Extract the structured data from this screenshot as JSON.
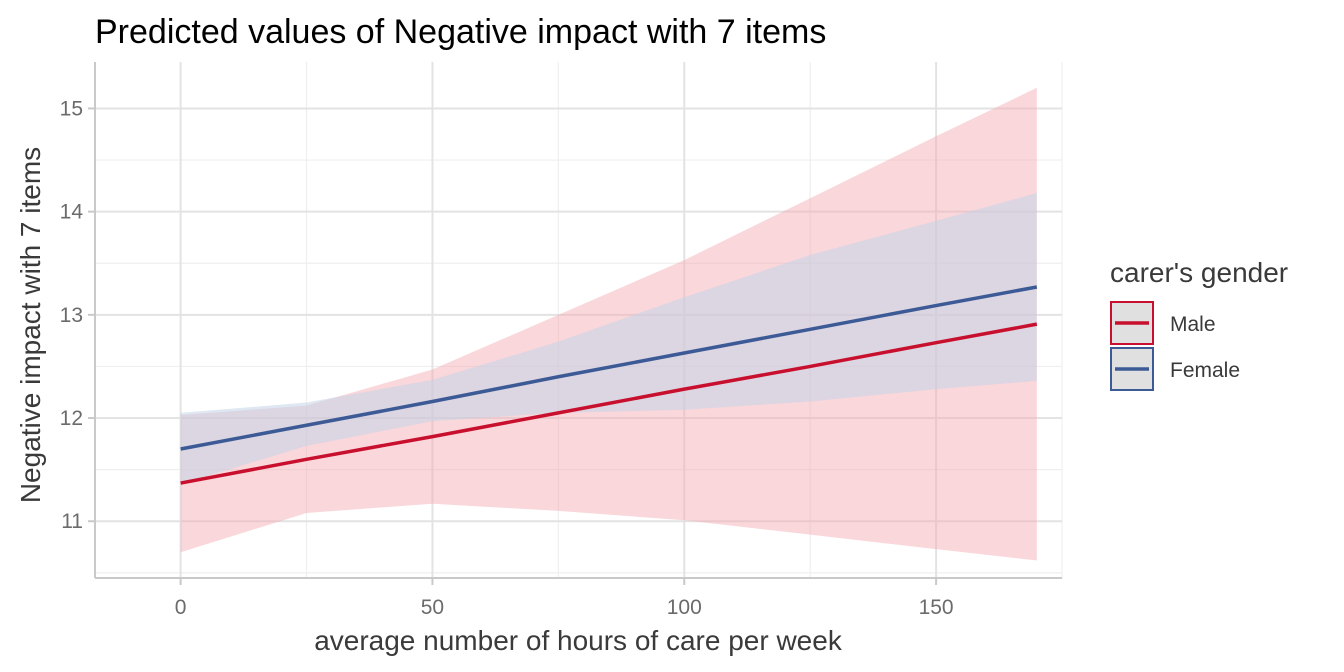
{
  "chart_data": {
    "type": "line",
    "title": "Predicted values of Negative impact with 7 items",
    "xlabel": "average number of hours of care per week",
    "ylabel": "Negative impact with 7 items",
    "xlim": [
      -17,
      175
    ],
    "ylim": [
      10.45,
      15.45
    ],
    "xticks": [
      0,
      50,
      100,
      150
    ],
    "yticks": [
      11,
      12,
      13,
      14,
      15
    ],
    "grid": true,
    "legend": {
      "title": "carer's gender",
      "position": "right"
    },
    "x": [
      0,
      25,
      50,
      75,
      100,
      125,
      150,
      170
    ],
    "series": [
      {
        "name": "Male",
        "color": "#c8102e",
        "ribbon_color": "#f4a6b0",
        "values": [
          11.37,
          11.6,
          11.82,
          12.05,
          12.28,
          12.5,
          12.73,
          12.91
        ],
        "lower": [
          10.7,
          11.08,
          11.17,
          11.1,
          11.01,
          10.87,
          10.73,
          10.62
        ],
        "upper": [
          12.03,
          12.12,
          12.47,
          13.0,
          13.53,
          14.13,
          14.73,
          15.2
        ]
      },
      {
        "name": "Female",
        "color": "#3c5a96",
        "ribbon_color": "#c3d3e8",
        "values": [
          11.7,
          11.93,
          12.16,
          12.4,
          12.63,
          12.86,
          13.09,
          13.27
        ],
        "lower": [
          11.36,
          11.73,
          11.97,
          12.05,
          12.08,
          12.16,
          12.28,
          12.36
        ],
        "upper": [
          12.05,
          12.15,
          12.37,
          12.74,
          13.17,
          13.58,
          13.91,
          14.18
        ]
      }
    ]
  }
}
